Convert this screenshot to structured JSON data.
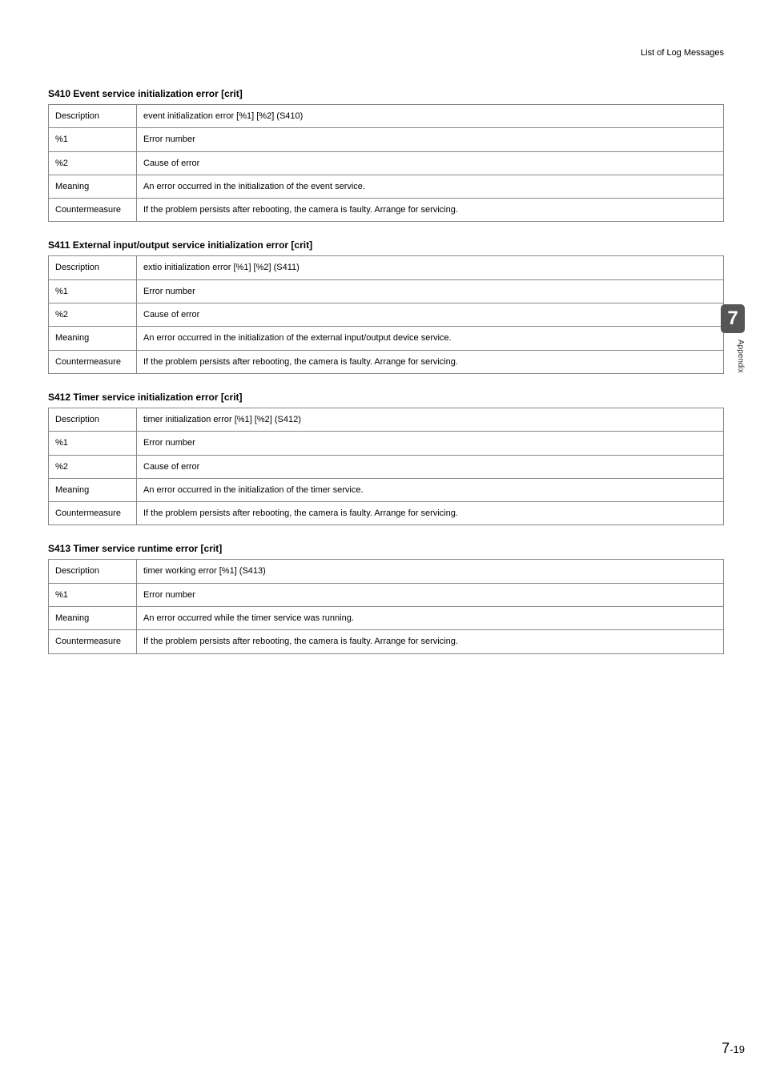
{
  "header": {
    "breadcrumb": "List of Log Messages"
  },
  "sections": [
    {
      "title": "S410 Event service initialization error [crit]",
      "rows": [
        {
          "label": "Description",
          "value": "event initialization error [%1] [%2] (S410)"
        },
        {
          "label": "%1",
          "value": "Error number"
        },
        {
          "label": "%2",
          "value": "Cause of error"
        },
        {
          "label": "Meaning",
          "value": "An error occurred in the initialization of the event service."
        },
        {
          "label": "Countermeasure",
          "value": "If the problem persists after rebooting, the camera is faulty. Arrange for servicing."
        }
      ]
    },
    {
      "title": "S411 External input/output service initialization error [crit]",
      "rows": [
        {
          "label": "Description",
          "value": "extio initialization error [%1] [%2] (S411)"
        },
        {
          "label": "%1",
          "value": "Error number"
        },
        {
          "label": "%2",
          "value": "Cause of error"
        },
        {
          "label": "Meaning",
          "value": "An error occurred in the initialization of the external input/output device service."
        },
        {
          "label": "Countermeasure",
          "value": "If the problem persists after rebooting, the camera is faulty. Arrange for servicing."
        }
      ]
    },
    {
      "title": "S412 Timer service initialization error [crit]",
      "rows": [
        {
          "label": "Description",
          "value": "timer initialization error [%1] [%2] (S412)"
        },
        {
          "label": "%1",
          "value": "Error number"
        },
        {
          "label": "%2",
          "value": "Cause of error"
        },
        {
          "label": "Meaning",
          "value": "An error occurred in the initialization of the timer service."
        },
        {
          "label": "Countermeasure",
          "value": "If the problem persists after rebooting, the camera is faulty. Arrange for servicing."
        }
      ]
    },
    {
      "title": "S413 Timer service runtime error [crit]",
      "rows": [
        {
          "label": "Description",
          "value": "timer working error [%1] (S413)"
        },
        {
          "label": "%1",
          "value": "Error number"
        },
        {
          "label": "Meaning",
          "value": "An error occurred while the timer service was running."
        },
        {
          "label": "Countermeasure",
          "value": "If the problem persists after rebooting, the camera is faulty. Arrange for servicing."
        }
      ]
    }
  ],
  "sidetab": {
    "number": "7",
    "label": "Appendix"
  },
  "footer": {
    "chapter": "7",
    "separator": "-",
    "page": "19"
  },
  "style": {
    "table_border_color": "#888888",
    "tab_bg": "#555555",
    "tab_fg": "#ffffff"
  }
}
